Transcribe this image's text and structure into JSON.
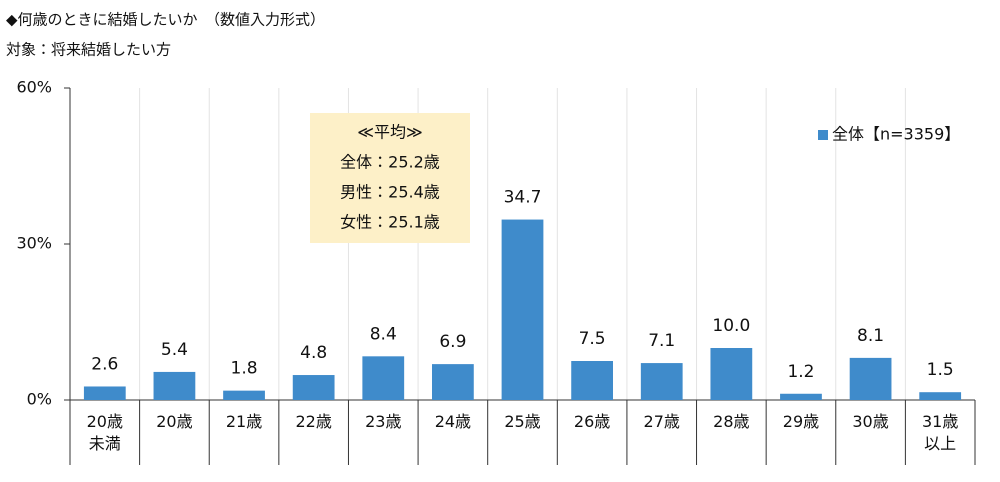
{
  "chart_data": {
    "type": "bar",
    "title": "◆何歳のときに結婚したいか　（数値入力形式）",
    "subtitle": "対象：将来結婚したい方",
    "categories": [
      "20歳\n未満",
      "20歳",
      "21歳",
      "22歳",
      "23歳",
      "24歳",
      "25歳",
      "26歳",
      "27歳",
      "28歳",
      "29歳",
      "30歳",
      "31歳\n以上"
    ],
    "series": [
      {
        "name": "全体【n=3359】",
        "color": "#3f8bcb",
        "values": [
          2.6,
          5.4,
          1.8,
          4.8,
          8.4,
          6.9,
          34.7,
          7.5,
          7.1,
          10.0,
          1.2,
          8.1,
          1.5
        ],
        "value_labels": [
          "2.6",
          "5.4",
          "1.8",
          "4.8",
          "8.4",
          "6.9",
          "34.7",
          "7.5",
          "7.1",
          "10.0",
          "1.2",
          "8.1",
          "1.5"
        ]
      }
    ],
    "ylim": [
      0,
      60
    ],
    "yticks": [
      {
        "value": 0,
        "label": "0%"
      },
      {
        "value": 30,
        "label": "30%"
      },
      {
        "value": 60,
        "label": "60%"
      }
    ],
    "legend": "top-right",
    "annotation": [
      "≪平均≫",
      "全体：25.2歳",
      "男性：25.4歳",
      "女性：25.1歳"
    ]
  }
}
